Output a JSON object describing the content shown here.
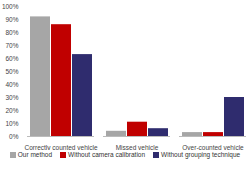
{
  "chart_data": {
    "type": "bar",
    "categories": [
      "Correctly counted vehicle",
      "Missed vehicle",
      "Over-counted vehicle"
    ],
    "series": [
      {
        "name": "Our method",
        "color": "#a6a6a6",
        "values": [
          92,
          4,
          3
        ]
      },
      {
        "name": "Without camera calibration",
        "color": "#c00000",
        "values": [
          86,
          11,
          3
        ]
      },
      {
        "name": "Without grouping technique",
        "color": "#2f2c6e",
        "values": [
          63,
          6,
          30
        ]
      }
    ],
    "ylim": [
      0,
      100
    ],
    "yticks": [
      {
        "value": 0,
        "label": "0%"
      },
      {
        "value": 10,
        "label": "10%"
      },
      {
        "value": 20,
        "label": "20%"
      },
      {
        "value": 30,
        "label": "30%"
      },
      {
        "value": 40,
        "label": "40%"
      },
      {
        "value": 50,
        "label": "50%"
      },
      {
        "value": 60,
        "label": "60%"
      },
      {
        "value": 70,
        "label": "70%"
      },
      {
        "value": 80,
        "label": "80%"
      },
      {
        "value": 90,
        "label": "90%"
      },
      {
        "value": 100,
        "label": "100%"
      }
    ],
    "grid": false,
    "legend": "bottom"
  }
}
